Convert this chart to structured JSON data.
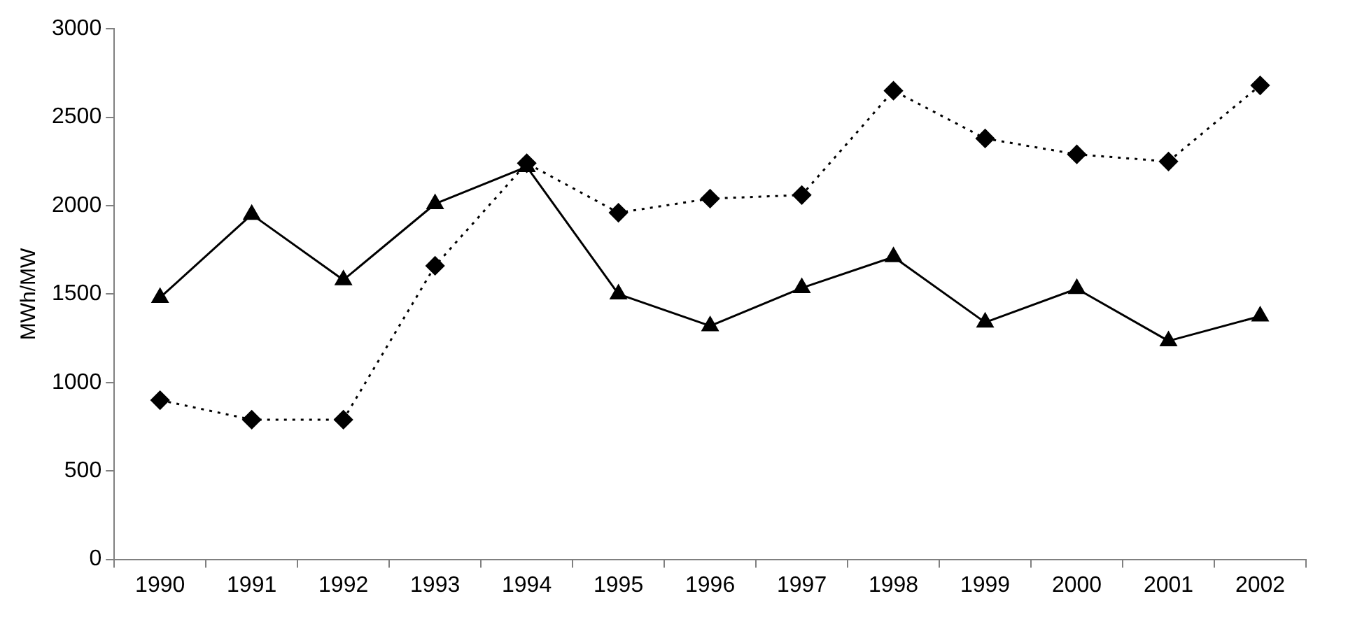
{
  "chart_data": {
    "type": "line",
    "ylabel": "MWh/MW",
    "categories": [
      "1990",
      "1991",
      "1992",
      "1993",
      "1994",
      "1995",
      "1996",
      "1997",
      "1998",
      "1999",
      "2000",
      "2001",
      "2002"
    ],
    "series": [
      {
        "color": "#000000",
        "marker": "triangle",
        "line_style": "solid",
        "values": [
          1480,
          1950,
          1580,
          2010,
          2220,
          1500,
          1320,
          1535,
          1710,
          1340,
          1530,
          1235,
          1375
        ]
      },
      {
        "color": "#000000",
        "marker": "diamond",
        "line_style": "dotted",
        "values": [
          900,
          790,
          790,
          1660,
          2240,
          1960,
          2040,
          2060,
          2650,
          2380,
          2290,
          2250,
          2680
        ]
      }
    ],
    "ylim": [
      0,
      3000
    ],
    "yticks": [
      0,
      500,
      1000,
      1500,
      2000,
      2500,
      3000
    ],
    "grid": false,
    "legend": false
  }
}
